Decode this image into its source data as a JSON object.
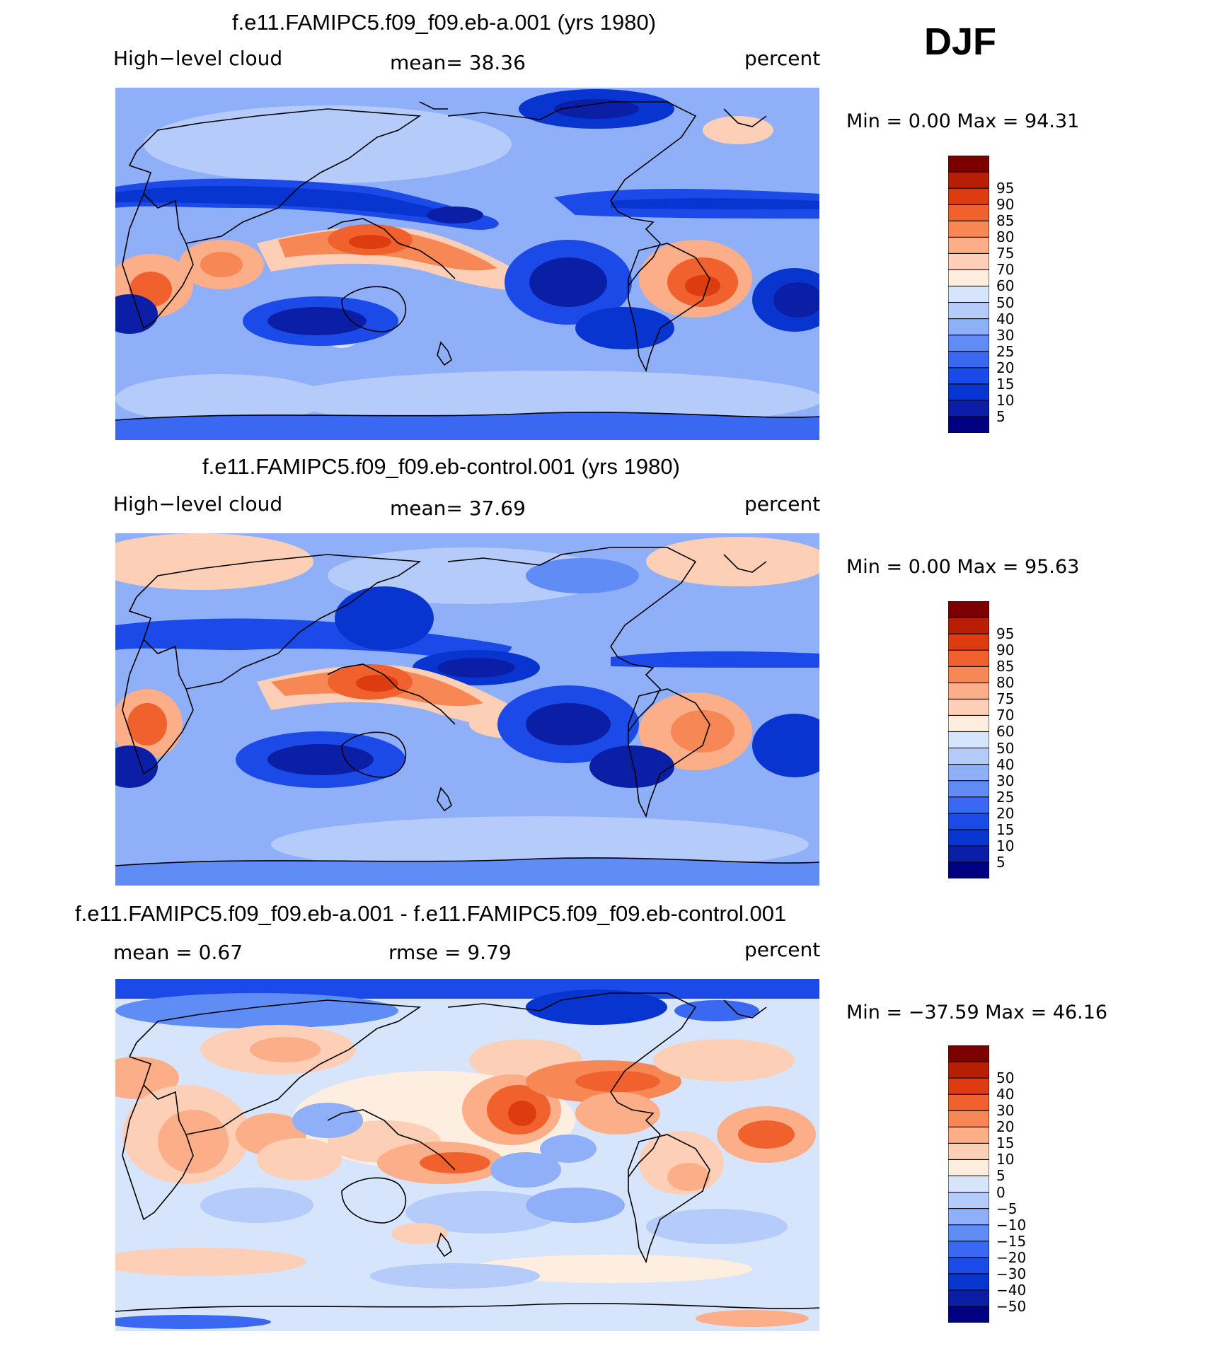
{
  "season": "DJF",
  "panels": [
    {
      "title": "f.e11.FAMIPC5.f09_f09.eb-a.001 (yrs 1980)",
      "left": "High−level cloud",
      "center": "mean=   38.36",
      "right": "percent",
      "minmax": "Min =     0.00 Max =   94.31"
    },
    {
      "title": "f.e11.FAMIPC5.f09_f09.eb-control.001 (yrs 1980)",
      "left": "High−level cloud",
      "center": "mean=   37.69",
      "right": "percent",
      "minmax": "Min =     0.00 Max =   95.63"
    },
    {
      "title": "f.e11.FAMIPC5.f09_f09.eb-a.001 - f.e11.FAMIPC5.f09_f09.eb-control.001",
      "left": "mean =    0.67",
      "center": "rmse =    9.79",
      "right": "percent",
      "minmax": "Min = −37.59 Max =   46.16"
    }
  ],
  "colorbar_colors": [
    "#000080",
    "#0b1fa6",
    "#0834cf",
    "#1b4ae8",
    "#3a68f2",
    "#5f8cf5",
    "#8fb0f8",
    "#b5ccfa",
    "#d6e5fb",
    "#fdeee0",
    "#fccfb6",
    "#fbae88",
    "#f78856",
    "#f0612d",
    "#dc3c10",
    "#b81e04",
    "#7c0000"
  ],
  "colorbar_abs": [
    "5",
    "10",
    "15",
    "20",
    "25",
    "30",
    "40",
    "50",
    "60",
    "70",
    "75",
    "80",
    "85",
    "90",
    "95"
  ],
  "colorbar_diff": [
    "−50",
    "−40",
    "−30",
    "−20",
    "−15",
    "−10",
    "−5",
    "0",
    "5",
    "10",
    "15",
    "20",
    "30",
    "40",
    "50"
  ]
}
